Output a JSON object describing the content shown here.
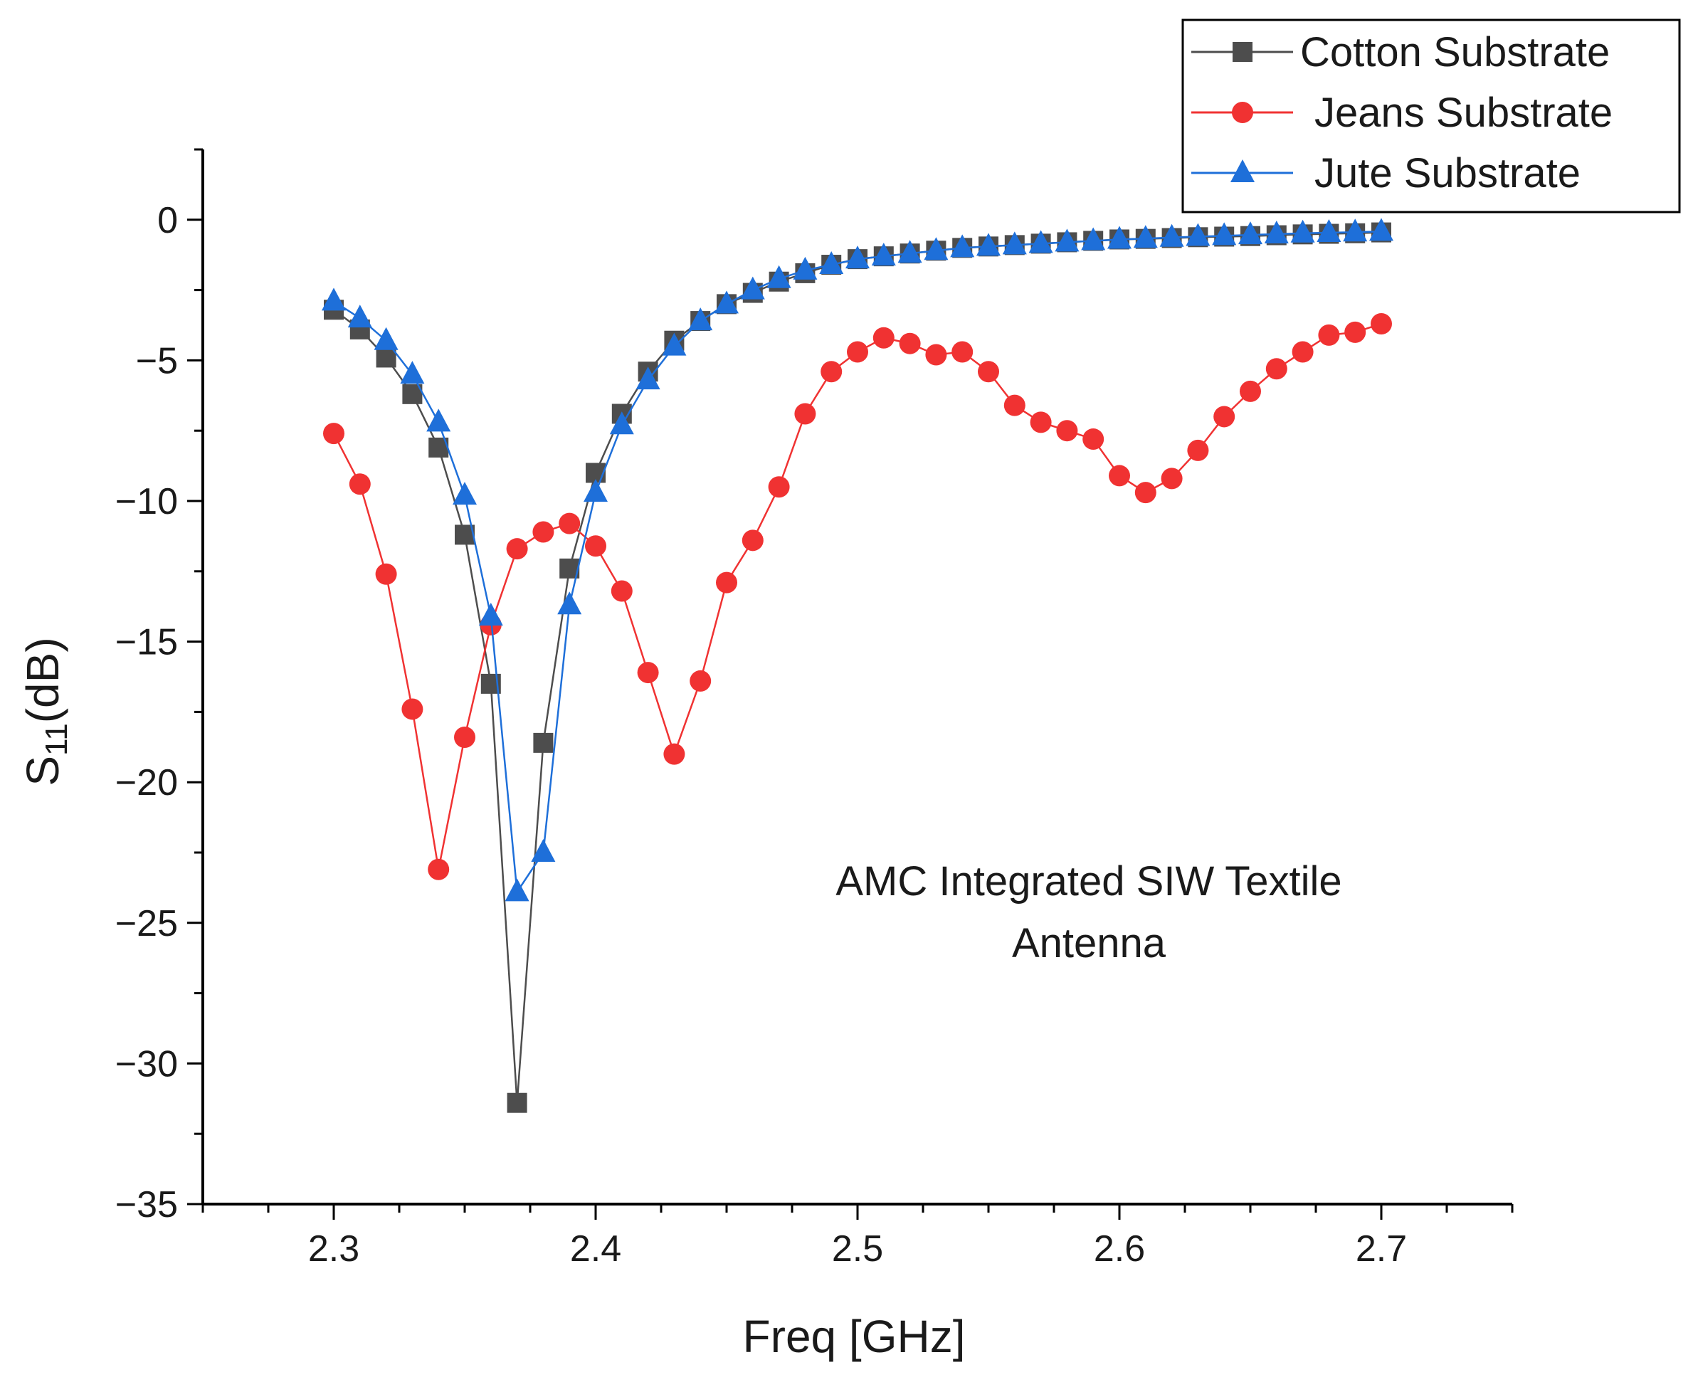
{
  "chart_data": {
    "type": "line",
    "xlabel": "Freq [GHz]",
    "ylabel_main": "S",
    "ylabel_sub": "11",
    "ylabel_suffix": "(dB)",
    "xlim": [
      2.25,
      2.75
    ],
    "ylim": [
      -35,
      2.5
    ],
    "xticks": [
      2.3,
      2.4,
      2.5,
      2.6,
      2.7
    ],
    "xtick_labels": [
      "2.3",
      "2.4",
      "2.5",
      "2.6",
      "2.7"
    ],
    "yticks": [
      0,
      -5,
      -10,
      -15,
      -20,
      -25,
      -30,
      -35
    ],
    "ytick_labels": [
      "0",
      "−5",
      "−10",
      "−15",
      "−20",
      "−25",
      "−30",
      "−35"
    ],
    "annotation": [
      "AMC Integrated SIW Textile",
      "Antenna"
    ],
    "legend_position": "top-right",
    "x": [
      2.3,
      2.31,
      2.32,
      2.33,
      2.34,
      2.35,
      2.36,
      2.37,
      2.38,
      2.39,
      2.4,
      2.41,
      2.42,
      2.43,
      2.44,
      2.45,
      2.46,
      2.47,
      2.48,
      2.49,
      2.5,
      2.51,
      2.52,
      2.53,
      2.54,
      2.55,
      2.56,
      2.57,
      2.58,
      2.59,
      2.6,
      2.61,
      2.62,
      2.63,
      2.64,
      2.65,
      2.66,
      2.67,
      2.68,
      2.69,
      2.7
    ],
    "series": [
      {
        "name": "Cotton Substrate",
        "color": "#4d4d4d",
        "marker": "square",
        "values": [
          -3.2,
          -3.9,
          -4.9,
          -6.2,
          -8.1,
          -11.2,
          -16.5,
          -31.4,
          -18.6,
          -12.4,
          -9.0,
          -6.9,
          -5.4,
          -4.3,
          -3.6,
          -3.0,
          -2.6,
          -2.2,
          -1.9,
          -1.6,
          -1.4,
          -1.3,
          -1.2,
          -1.1,
          -1.0,
          -0.95,
          -0.9,
          -0.85,
          -0.8,
          -0.75,
          -0.7,
          -0.68,
          -0.65,
          -0.62,
          -0.6,
          -0.58,
          -0.55,
          -0.52,
          -0.5,
          -0.48,
          -0.45
        ]
      },
      {
        "name": "Jeans Substrate",
        "color": "#f03232",
        "marker": "circle",
        "values": [
          -7.6,
          -9.4,
          -12.6,
          -17.4,
          -23.1,
          -18.4,
          -14.4,
          -11.7,
          -11.1,
          -10.8,
          -11.6,
          -13.2,
          -16.1,
          -19.0,
          -16.4,
          -12.9,
          -11.4,
          -9.5,
          -6.9,
          -5.4,
          -4.7,
          -4.2,
          -4.4,
          -4.8,
          -4.7,
          -5.4,
          -6.6,
          -7.2,
          -7.5,
          -7.8,
          -9.1,
          -9.7,
          -9.2,
          -8.2,
          -7.0,
          -6.1,
          -5.3,
          -4.7,
          -4.1,
          -4.0,
          -3.7
        ]
      },
      {
        "name": "Jute Substrate",
        "color": "#1e6fd9",
        "marker": "triangle",
        "values": [
          -2.9,
          -3.5,
          -4.3,
          -5.5,
          -7.2,
          -9.8,
          -14.1,
          -23.9,
          -22.5,
          -13.7,
          -9.7,
          -7.3,
          -5.7,
          -4.5,
          -3.6,
          -3.0,
          -2.5,
          -2.1,
          -1.8,
          -1.6,
          -1.4,
          -1.3,
          -1.2,
          -1.1,
          -1.0,
          -0.95,
          -0.9,
          -0.85,
          -0.8,
          -0.75,
          -0.7,
          -0.67,
          -0.63,
          -0.6,
          -0.57,
          -0.54,
          -0.51,
          -0.48,
          -0.46,
          -0.44,
          -0.42
        ]
      }
    ]
  }
}
